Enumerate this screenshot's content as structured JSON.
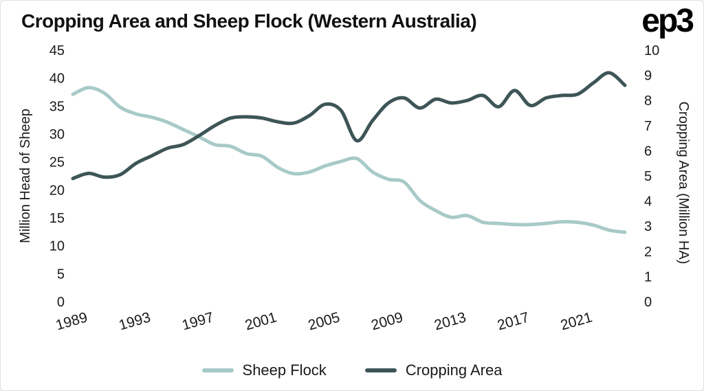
{
  "header": {
    "title": "Cropping Area and Sheep Flock (Western Australia)",
    "logo": "ep3"
  },
  "chart_data": {
    "type": "line",
    "title": "Cropping Area and Sheep Flock (Western Australia)",
    "x": [
      1989,
      1990,
      1991,
      1992,
      1993,
      1994,
      1995,
      1996,
      1997,
      1998,
      1999,
      2000,
      2001,
      2002,
      2003,
      2004,
      2005,
      2006,
      2007,
      2008,
      2009,
      2010,
      2011,
      2012,
      2013,
      2014,
      2015,
      2016,
      2017,
      2018,
      2019,
      2020,
      2021,
      2022,
      2023,
      2024
    ],
    "x_ticks": [
      1989,
      1993,
      1997,
      2001,
      2005,
      2009,
      2013,
      2017,
      2021
    ],
    "x_tick_labels": [
      "1989",
      "1993",
      "1997",
      "2001",
      "2005",
      "2009",
      "2013",
      "2017",
      "2021"
    ],
    "series": [
      {
        "name": "Sheep Flock",
        "axis": "left",
        "color": "#a7cac8",
        "values": [
          37.1,
          38.3,
          37.3,
          34.8,
          33.6,
          33.0,
          32.1,
          30.8,
          29.5,
          28.1,
          27.8,
          26.5,
          26.0,
          24.0,
          22.9,
          23.2,
          24.3,
          25.1,
          25.6,
          23.2,
          21.9,
          21.4,
          18.1,
          16.3,
          15.1,
          15.4,
          14.2,
          14.0,
          13.8,
          13.8,
          14.0,
          14.3,
          14.2,
          13.7,
          12.8,
          12.4
        ]
      },
      {
        "name": "Cropping Area",
        "axis": "right",
        "color": "#3e5557",
        "values": [
          4.9,
          5.1,
          4.95,
          5.05,
          5.5,
          5.8,
          6.1,
          6.25,
          6.6,
          7.0,
          7.3,
          7.35,
          7.3,
          7.15,
          7.1,
          7.4,
          7.85,
          7.6,
          6.4,
          7.2,
          7.9,
          8.1,
          7.7,
          8.05,
          7.9,
          8.0,
          8.2,
          7.75,
          8.4,
          7.8,
          8.1,
          8.2,
          8.25,
          8.7,
          9.1,
          8.6
        ]
      }
    ],
    "left_axis": {
      "label": "Million Head of Sheep",
      "ticks": [
        0,
        5,
        10,
        15,
        20,
        25,
        30,
        35,
        40,
        45
      ],
      "range": [
        0,
        45
      ]
    },
    "right_axis": {
      "label": "Cropping Area (Million HA)",
      "ticks": [
        0,
        1,
        2,
        3,
        4,
        5,
        6,
        7,
        8,
        9,
        10
      ],
      "range": [
        0,
        10
      ]
    },
    "legend": [
      "Sheep Flock",
      "Cropping Area"
    ],
    "grid": false,
    "legend_position": "bottom"
  }
}
